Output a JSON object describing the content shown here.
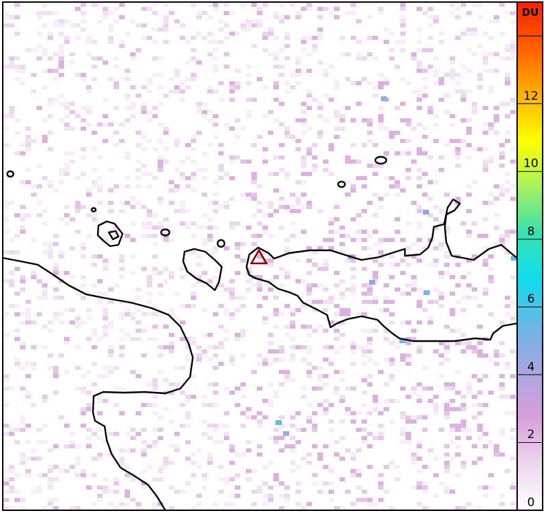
{
  "colorbar": {
    "unit": "DU",
    "min": 0,
    "max": 15,
    "ticks": [
      0,
      2,
      4,
      6,
      8,
      10,
      12,
      14
    ],
    "tick_labels": [
      "0",
      "2",
      "4",
      "6",
      "8",
      "10",
      "12",
      ""
    ],
    "colors": [
      "#ffffff",
      "#ecd8ee",
      "#d9a0db",
      "#a8a6e0",
      "#6bb6e4",
      "#10dcef",
      "#38e2b0",
      "#a8f060",
      "#ffff00",
      "#ffb000",
      "#ff6000",
      "#ff2000"
    ]
  },
  "map": {
    "marker": {
      "type": "volcano-triangle",
      "color": "#8b0000"
    },
    "coastline_color": "#000000",
    "background": "#ffffff"
  }
}
